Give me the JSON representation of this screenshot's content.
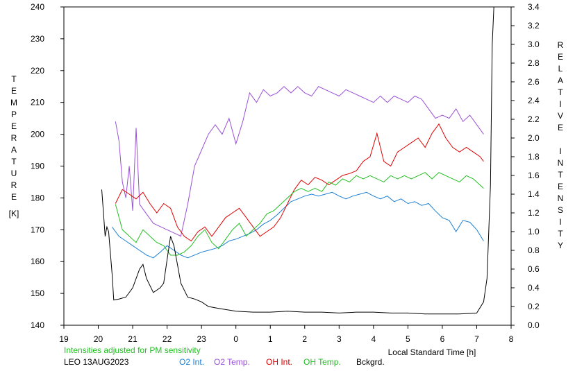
{
  "chart_data": {
    "type": "line",
    "title": "",
    "left_axis": {
      "label": "TEMPERATURE",
      "unit": "[K]",
      "ylim": [
        140,
        240
      ],
      "ticks": [
        "140",
        "150",
        "160",
        "170",
        "180",
        "190",
        "200",
        "210",
        "220",
        "230",
        "240"
      ]
    },
    "right_axis": {
      "label": "RELATIVE INTENSITY",
      "ylim": [
        0.0,
        3.4
      ],
      "ticks": [
        "0.0",
        "0.2",
        "0.4",
        "0.6",
        "0.8",
        "1.0",
        "1.2",
        "1.4",
        "1.6",
        "1.8",
        "2.0",
        "2.2",
        "2.4",
        "2.6",
        "2.8",
        "3.0",
        "3.2",
        "3.4"
      ]
    },
    "x_axis": {
      "label": "Local Standard Time [h]",
      "xlim": [
        19,
        32
      ],
      "ticks": [
        "19",
        "20",
        "21",
        "22",
        "23",
        "0",
        "1",
        "2",
        "3",
        "4",
        "5",
        "6",
        "7",
        "8"
      ]
    },
    "grid": false,
    "legend_position": "bottom",
    "footnote": "Intensities adjusted for PM sensitivity",
    "station": "LEO 13AUG2023",
    "colors": {
      "o2_int": "#1a7fd4",
      "o2_temp": "#9a4fd6",
      "oh_int": "#e00000",
      "oh_temp": "#22c022",
      "bckgrd": "#000000",
      "footnote": "#22c022"
    },
    "series": [
      {
        "name": "O2 Int.",
        "axis": "right",
        "points": [
          [
            20.4,
            1.05
          ],
          [
            20.6,
            0.95
          ],
          [
            20.8,
            0.9
          ],
          [
            21.0,
            0.85
          ],
          [
            21.2,
            0.8
          ],
          [
            21.4,
            0.75
          ],
          [
            21.6,
            0.72
          ],
          [
            21.8,
            0.78
          ],
          [
            22.0,
            0.85
          ],
          [
            22.2,
            0.8
          ],
          [
            22.4,
            0.75
          ],
          [
            22.6,
            0.72
          ],
          [
            22.8,
            0.75
          ],
          [
            23.0,
            0.78
          ],
          [
            23.2,
            0.8
          ],
          [
            23.4,
            0.82
          ],
          [
            23.6,
            0.85
          ],
          [
            23.8,
            0.9
          ],
          [
            24.0,
            0.92
          ],
          [
            24.2,
            0.95
          ],
          [
            24.4,
            0.98
          ],
          [
            24.6,
            1.02
          ],
          [
            24.8,
            1.08
          ],
          [
            25.0,
            1.12
          ],
          [
            25.2,
            1.18
          ],
          [
            25.4,
            1.25
          ],
          [
            25.6,
            1.32
          ],
          [
            25.8,
            1.35
          ],
          [
            26.0,
            1.38
          ],
          [
            26.2,
            1.4
          ],
          [
            26.4,
            1.38
          ],
          [
            26.6,
            1.4
          ],
          [
            26.8,
            1.42
          ],
          [
            27.0,
            1.38
          ],
          [
            27.2,
            1.35
          ],
          [
            27.4,
            1.38
          ],
          [
            27.6,
            1.4
          ],
          [
            27.8,
            1.42
          ],
          [
            28.0,
            1.38
          ],
          [
            28.2,
            1.35
          ],
          [
            28.4,
            1.38
          ],
          [
            28.6,
            1.32
          ],
          [
            28.8,
            1.35
          ],
          [
            29.0,
            1.3
          ],
          [
            29.2,
            1.32
          ],
          [
            29.4,
            1.28
          ],
          [
            29.6,
            1.3
          ],
          [
            29.8,
            1.22
          ],
          [
            30.0,
            1.15
          ],
          [
            30.2,
            1.12
          ],
          [
            30.4,
            1.0
          ],
          [
            30.6,
            1.12
          ],
          [
            30.8,
            1.1
          ],
          [
            31.0,
            1.02
          ],
          [
            31.2,
            0.9
          ]
        ]
      },
      {
        "name": "O2 Temp.",
        "axis": "left",
        "points": [
          [
            20.5,
            204
          ],
          [
            20.6,
            198
          ],
          [
            20.7,
            185
          ],
          [
            20.8,
            180
          ],
          [
            20.9,
            190
          ],
          [
            21.0,
            176
          ],
          [
            21.1,
            202
          ],
          [
            21.2,
            178
          ],
          [
            21.4,
            175
          ],
          [
            21.6,
            172
          ],
          [
            22.0,
            170
          ],
          [
            22.4,
            168
          ],
          [
            22.6,
            178
          ],
          [
            22.8,
            190
          ],
          [
            23.0,
            195
          ],
          [
            23.2,
            200
          ],
          [
            23.4,
            203
          ],
          [
            23.6,
            200
          ],
          [
            23.8,
            205
          ],
          [
            24.0,
            197
          ],
          [
            24.2,
            204
          ],
          [
            24.4,
            213
          ],
          [
            24.6,
            210
          ],
          [
            24.8,
            214
          ],
          [
            25.0,
            212
          ],
          [
            25.2,
            213
          ],
          [
            25.4,
            215
          ],
          [
            25.6,
            213
          ],
          [
            25.8,
            215
          ],
          [
            26.0,
            213
          ],
          [
            26.2,
            212
          ],
          [
            26.4,
            215
          ],
          [
            26.6,
            214
          ],
          [
            26.8,
            213
          ],
          [
            27.0,
            212
          ],
          [
            27.2,
            214
          ],
          [
            27.4,
            213
          ],
          [
            27.6,
            212
          ],
          [
            27.8,
            211
          ],
          [
            28.0,
            210
          ],
          [
            28.2,
            212
          ],
          [
            28.4,
            210
          ],
          [
            28.6,
            212
          ],
          [
            28.8,
            211
          ],
          [
            29.0,
            210
          ],
          [
            29.2,
            212
          ],
          [
            29.4,
            211
          ],
          [
            29.6,
            208
          ],
          [
            29.8,
            205
          ],
          [
            30.0,
            206
          ],
          [
            30.2,
            205
          ],
          [
            30.4,
            208
          ],
          [
            30.6,
            204
          ],
          [
            30.8,
            206
          ],
          [
            31.0,
            203
          ],
          [
            31.2,
            200
          ]
        ]
      },
      {
        "name": "OH Int.",
        "axis": "right",
        "points": [
          [
            20.5,
            1.3
          ],
          [
            20.7,
            1.45
          ],
          [
            20.9,
            1.4
          ],
          [
            21.1,
            1.35
          ],
          [
            21.3,
            1.42
          ],
          [
            21.5,
            1.3
          ],
          [
            21.7,
            1.2
          ],
          [
            21.9,
            1.3
          ],
          [
            22.1,
            1.25
          ],
          [
            22.3,
            1.05
          ],
          [
            22.5,
            0.95
          ],
          [
            22.7,
            0.9
          ],
          [
            22.9,
            1.0
          ],
          [
            23.1,
            1.05
          ],
          [
            23.3,
            0.95
          ],
          [
            23.5,
            1.05
          ],
          [
            23.7,
            1.15
          ],
          [
            23.9,
            1.2
          ],
          [
            24.1,
            1.25
          ],
          [
            24.3,
            1.15
          ],
          [
            24.5,
            1.05
          ],
          [
            24.7,
            0.95
          ],
          [
            24.9,
            1.0
          ],
          [
            25.1,
            1.05
          ],
          [
            25.3,
            1.15
          ],
          [
            25.5,
            1.3
          ],
          [
            25.7,
            1.45
          ],
          [
            25.9,
            1.55
          ],
          [
            26.1,
            1.5
          ],
          [
            26.3,
            1.58
          ],
          [
            26.5,
            1.55
          ],
          [
            26.7,
            1.5
          ],
          [
            26.9,
            1.55
          ],
          [
            27.1,
            1.6
          ],
          [
            27.3,
            1.62
          ],
          [
            27.5,
            1.65
          ],
          [
            27.7,
            1.75
          ],
          [
            27.9,
            1.8
          ],
          [
            28.1,
            2.05
          ],
          [
            28.3,
            1.75
          ],
          [
            28.5,
            1.7
          ],
          [
            28.7,
            1.85
          ],
          [
            28.9,
            1.9
          ],
          [
            29.1,
            1.95
          ],
          [
            29.3,
            2.0
          ],
          [
            29.5,
            1.9
          ],
          [
            29.7,
            2.05
          ],
          [
            29.9,
            2.15
          ],
          [
            30.1,
            2.0
          ],
          [
            30.3,
            1.9
          ],
          [
            30.5,
            1.85
          ],
          [
            30.7,
            1.9
          ],
          [
            30.9,
            1.85
          ],
          [
            31.1,
            1.8
          ],
          [
            31.2,
            1.75
          ]
        ]
      },
      {
        "name": "OH Temp.",
        "axis": "left",
        "points": [
          [
            20.5,
            178
          ],
          [
            20.7,
            170
          ],
          [
            20.9,
            168
          ],
          [
            21.1,
            166
          ],
          [
            21.3,
            170
          ],
          [
            21.5,
            168
          ],
          [
            21.7,
            166
          ],
          [
            21.9,
            165
          ],
          [
            22.1,
            162
          ],
          [
            22.3,
            162
          ],
          [
            22.5,
            163
          ],
          [
            22.7,
            165
          ],
          [
            22.9,
            168
          ],
          [
            23.1,
            170
          ],
          [
            23.3,
            166
          ],
          [
            23.5,
            164
          ],
          [
            23.7,
            167
          ],
          [
            23.9,
            170
          ],
          [
            24.1,
            172
          ],
          [
            24.3,
            168
          ],
          [
            24.5,
            170
          ],
          [
            24.7,
            172
          ],
          [
            24.9,
            175
          ],
          [
            25.1,
            176
          ],
          [
            25.3,
            178
          ],
          [
            25.5,
            180
          ],
          [
            25.7,
            182
          ],
          [
            25.9,
            183
          ],
          [
            26.1,
            182
          ],
          [
            26.3,
            183
          ],
          [
            26.5,
            182
          ],
          [
            26.7,
            185
          ],
          [
            26.9,
            184
          ],
          [
            27.1,
            186
          ],
          [
            27.3,
            185
          ],
          [
            27.5,
            187
          ],
          [
            27.7,
            186
          ],
          [
            27.9,
            187
          ],
          [
            28.1,
            186
          ],
          [
            28.3,
            185
          ],
          [
            28.5,
            187
          ],
          [
            28.7,
            186
          ],
          [
            28.9,
            187
          ],
          [
            29.1,
            186
          ],
          [
            29.3,
            187
          ],
          [
            29.5,
            188
          ],
          [
            29.7,
            186
          ],
          [
            29.9,
            188
          ],
          [
            30.1,
            187
          ],
          [
            30.3,
            186
          ],
          [
            30.5,
            185
          ],
          [
            30.7,
            187
          ],
          [
            30.9,
            186
          ],
          [
            31.1,
            184
          ],
          [
            31.2,
            183
          ]
        ]
      },
      {
        "name": "Bckgrd.",
        "axis": "right",
        "points": [
          [
            20.1,
            1.45
          ],
          [
            20.15,
            1.2
          ],
          [
            20.2,
            0.95
          ],
          [
            20.25,
            1.05
          ],
          [
            20.3,
            1.0
          ],
          [
            20.4,
            0.55
          ],
          [
            20.45,
            0.27
          ],
          [
            20.6,
            0.28
          ],
          [
            20.8,
            0.3
          ],
          [
            21.0,
            0.4
          ],
          [
            21.2,
            0.6
          ],
          [
            21.3,
            0.65
          ],
          [
            21.4,
            0.5
          ],
          [
            21.6,
            0.35
          ],
          [
            21.8,
            0.4
          ],
          [
            21.9,
            0.45
          ],
          [
            22.0,
            0.7
          ],
          [
            22.1,
            0.95
          ],
          [
            22.2,
            0.85
          ],
          [
            22.3,
            0.65
          ],
          [
            22.4,
            0.45
          ],
          [
            22.6,
            0.3
          ],
          [
            22.8,
            0.28
          ],
          [
            23.0,
            0.25
          ],
          [
            23.2,
            0.2
          ],
          [
            23.5,
            0.18
          ],
          [
            24.0,
            0.15
          ],
          [
            24.5,
            0.14
          ],
          [
            25.0,
            0.14
          ],
          [
            25.5,
            0.15
          ],
          [
            26.0,
            0.14
          ],
          [
            26.5,
            0.14
          ],
          [
            27.0,
            0.13
          ],
          [
            27.5,
            0.14
          ],
          [
            28.0,
            0.14
          ],
          [
            28.5,
            0.13
          ],
          [
            29.0,
            0.13
          ],
          [
            29.5,
            0.12
          ],
          [
            30.0,
            0.12
          ],
          [
            30.5,
            0.12
          ],
          [
            31.0,
            0.13
          ],
          [
            31.2,
            0.25
          ],
          [
            31.3,
            0.5
          ],
          [
            31.4,
            1.5
          ],
          [
            31.45,
            3.0
          ],
          [
            31.5,
            3.4
          ]
        ]
      }
    ]
  }
}
